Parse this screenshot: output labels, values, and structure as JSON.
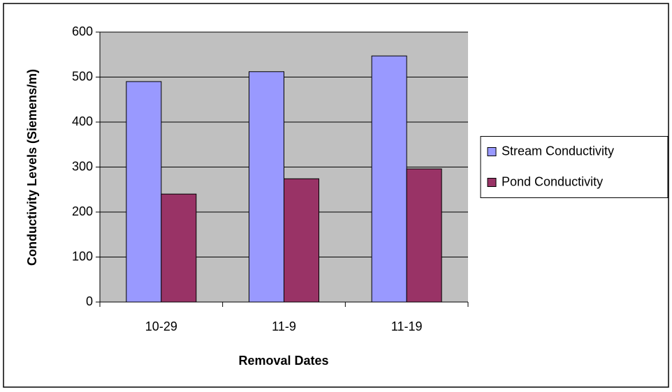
{
  "chart_data": {
    "type": "bar",
    "x_label": "Removal Dates",
    "y_label": "Conductivity Levels (Siemens/m)",
    "categories": [
      "10-29",
      "11-9",
      "11-19"
    ],
    "series": [
      {
        "name": "Stream Conductivity",
        "color": "#9999ff",
        "values": [
          490,
          512,
          547
        ]
      },
      {
        "name": "Pond Conductivity",
        "color": "#993366",
        "values": [
          240,
          274,
          296
        ]
      }
    ],
    "ylim": [
      0,
      600
    ],
    "yticks": [
      0,
      100,
      200,
      300,
      400,
      500,
      600
    ],
    "grid": true,
    "legend": "right"
  }
}
